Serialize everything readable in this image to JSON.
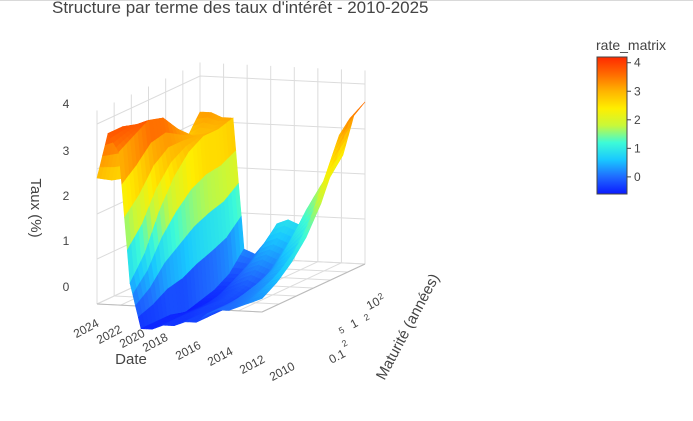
{
  "chart_data": {
    "type": "surface",
    "title": "Structure par terme des taux d'intérêt - 2010-2025",
    "x_axis": {
      "label": "Maturité (années)",
      "ticks": [
        "0.1",
        "2",
        "5",
        "1",
        "2",
        "10",
        "2"
      ],
      "scale": "log"
    },
    "y_axis": {
      "label": "Date",
      "ticks": [
        "2024",
        "2022",
        "2020",
        "2018",
        "2016",
        "2014",
        "2012",
        "2010"
      ]
    },
    "z_axis": {
      "label": "Taux (%)",
      "ticks": [
        "4",
        "3",
        "2",
        "1",
        "0"
      ],
      "range": [
        -0.5,
        4.2
      ]
    },
    "colorbar": {
      "title": "rate_matrix",
      "ticks": [
        "4",
        "3",
        "2",
        "1",
        "0"
      ],
      "range": [
        -0.6,
        4.2
      ],
      "colorscale": [
        "#0b1aff",
        "#1f6bff",
        "#19c8ff",
        "#3dfbd8",
        "#c8f83a",
        "#ffee00",
        "#ffb400",
        "#ff6a00",
        "#ff2a00"
      ]
    },
    "surface": {
      "maturities": [
        0.1,
        0.25,
        0.5,
        1,
        2,
        5,
        10,
        30
      ],
      "dates": [
        2010,
        2011,
        2012,
        2013,
        2014,
        2015,
        2016,
        2017,
        2018,
        2019,
        2020,
        2021,
        2022,
        2023,
        2024,
        2025
      ],
      "rates": [
        [
          0.3,
          0.5,
          0.8,
          1.2,
          1.8,
          2.6,
          3.4,
          3.6
        ],
        [
          0.2,
          0.4,
          0.6,
          0.9,
          1.4,
          2.2,
          3.0,
          3.3
        ],
        [
          0.1,
          0.2,
          0.3,
          0.5,
          0.8,
          1.4,
          2.0,
          2.4
        ],
        [
          0.0,
          0.1,
          0.2,
          0.4,
          0.6,
          1.1,
          1.7,
          2.1
        ],
        [
          0.0,
          0.0,
          0.1,
          0.2,
          0.4,
          0.8,
          1.3,
          1.7
        ],
        [
          -0.1,
          -0.1,
          -0.1,
          0.0,
          0.1,
          0.4,
          0.8,
          1.2
        ],
        [
          -0.3,
          -0.3,
          -0.3,
          -0.3,
          -0.2,
          0.1,
          0.4,
          0.8
        ],
        [
          -0.3,
          -0.3,
          -0.3,
          -0.2,
          -0.1,
          0.2,
          0.5,
          0.9
        ],
        [
          -0.4,
          -0.4,
          -0.3,
          -0.3,
          -0.2,
          0.1,
          0.4,
          0.8
        ],
        [
          -0.4,
          -0.4,
          -0.4,
          -0.4,
          -0.3,
          -0.1,
          0.1,
          0.4
        ],
        [
          -0.5,
          -0.5,
          -0.5,
          -0.5,
          -0.5,
          -0.4,
          -0.2,
          0.1
        ],
        [
          -0.5,
          -0.5,
          -0.5,
          -0.6,
          -0.5,
          -0.4,
          -0.2,
          0.2
        ],
        [
          0.5,
          1.0,
          1.8,
          2.4,
          2.8,
          3.0,
          3.0,
          3.1
        ],
        [
          3.4,
          3.6,
          3.8,
          3.7,
          3.3,
          3.0,
          2.9,
          3.1
        ],
        [
          3.8,
          3.8,
          3.7,
          3.5,
          3.1,
          2.9,
          2.9,
          3.2
        ],
        [
          2.8,
          2.6,
          2.5,
          2.3,
          2.2,
          2.4,
          2.7,
          3.2
        ]
      ]
    }
  }
}
